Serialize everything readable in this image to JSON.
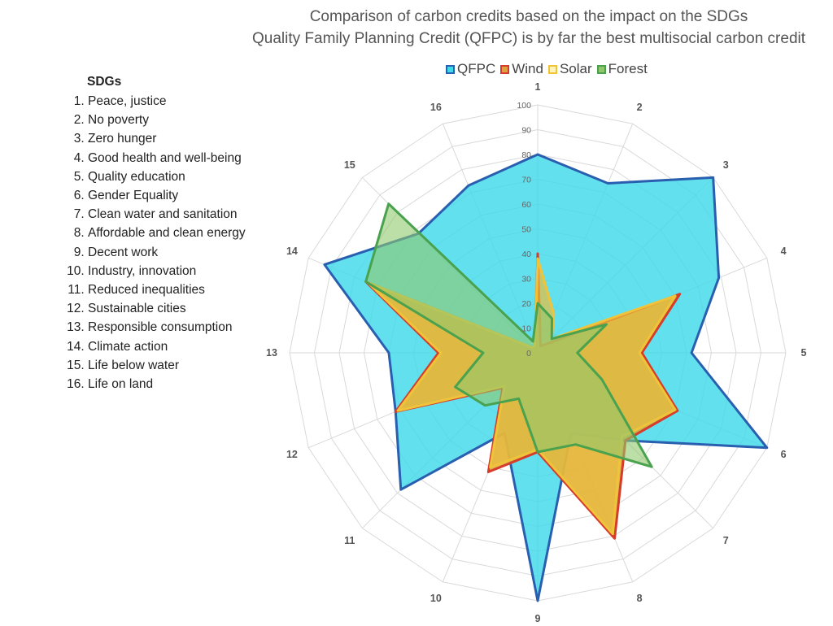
{
  "chart_data": {
    "type": "radar",
    "title": "Comparison of carbon credits based on the impact on the SDGs",
    "subtitle": "Quality Family Planning Credit (QFPC) is by far the best multisocial carbon credit",
    "axes": [
      "1",
      "2",
      "3",
      "4",
      "5",
      "6",
      "7",
      "8",
      "9",
      "10",
      "11",
      "12",
      "13",
      "14",
      "15",
      "16"
    ],
    "r_ticks": [
      "0",
      "10",
      "20",
      "30",
      "40",
      "50",
      "60",
      "70",
      "80",
      "90",
      "100"
    ],
    "r_range": [
      0,
      100
    ],
    "legend_position": "top",
    "series": [
      {
        "name": "QFPC",
        "color": "#2a5fb0",
        "fill": "#40d9ea",
        "values": [
          80,
          74,
          100,
          79,
          62,
          100,
          50,
          35,
          100,
          35,
          78,
          62,
          60,
          93,
          68,
          73
        ]
      },
      {
        "name": "Wind",
        "color": "#d63c2a",
        "fill": "#d9a43c",
        "values": [
          40,
          3,
          5,
          62,
          42,
          61,
          50,
          81,
          40,
          52,
          20,
          62,
          40,
          75,
          3,
          3
        ]
      },
      {
        "name": "Solar",
        "color": "#f0c43a",
        "fill": "#e8be3c",
        "values": [
          38,
          17,
          8,
          60,
          41,
          60,
          48,
          79,
          39,
          50,
          19,
          61,
          39,
          74,
          3,
          3
        ]
      },
      {
        "name": "Forest",
        "color": "#4aa24e",
        "fill": "#8fc86c",
        "values": [
          20,
          15,
          8,
          30,
          16,
          28,
          65,
          40,
          40,
          20,
          30,
          36,
          22,
          75,
          85,
          5
        ]
      }
    ]
  },
  "sdg_list": {
    "title": "SDGs",
    "items": [
      "Peace, justice",
      "No poverty",
      "Zero hunger",
      "Good health and well-being",
      "Quality education",
      "Gender Equality",
      "Clean water and sanitation",
      "Affordable and clean energy",
      "Decent work",
      "Industry, innovation",
      "Reduced inequalities",
      "Sustainable cities",
      "Responsible consumption",
      "Climate action",
      "Life below water",
      "Life on land"
    ]
  }
}
